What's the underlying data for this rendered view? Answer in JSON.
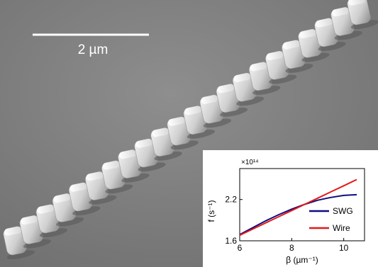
{
  "micrograph": {
    "scale_bar_label": "2 µm",
    "pillar_count": 22
  },
  "inset": {
    "multiplier": "×10¹⁴",
    "y_label": "f (s⁻¹)",
    "x_label": "β (µm⁻¹)",
    "x_ticks": [
      "6",
      "8",
      "10"
    ],
    "y_ticks": [
      "1.6",
      "2.2"
    ],
    "legend": {
      "swg": "SWG",
      "wire": "Wire"
    }
  },
  "chart_data": {
    "type": "line",
    "xlabel": "β (µm⁻¹)",
    "ylabel": "f (s⁻¹)",
    "xlim": [
      6,
      10.8
    ],
    "ylim": [
      1.6,
      2.65
    ],
    "series": [
      {
        "name": "SWG",
        "color": "#0d0d80",
        "x": [
          6.0,
          6.5,
          7.0,
          7.5,
          8.0,
          8.5,
          9.0,
          9.5,
          10.0,
          10.5
        ],
        "y": [
          1.69,
          1.79,
          1.89,
          1.98,
          2.06,
          2.13,
          2.19,
          2.23,
          2.26,
          2.27
        ]
      },
      {
        "name": "Wire",
        "color": "#e31a1c",
        "x": [
          6.0,
          6.5,
          7.0,
          7.5,
          8.0,
          8.5,
          9.0,
          9.5,
          10.0,
          10.5
        ],
        "y": [
          1.68,
          1.77,
          1.86,
          1.95,
          2.04,
          2.13,
          2.22,
          2.31,
          2.4,
          2.49
        ]
      }
    ]
  }
}
